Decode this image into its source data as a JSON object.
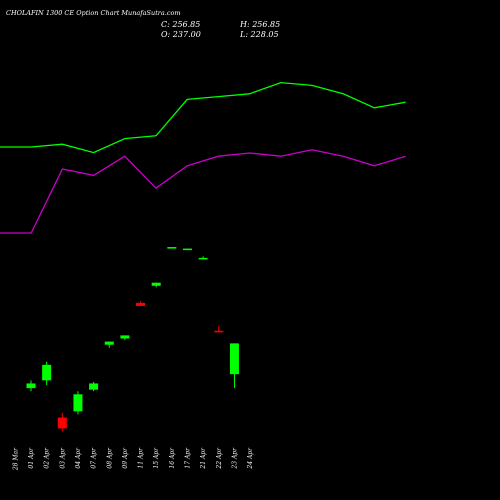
{
  "title": "CHOLAFIN 1300 CE Option Chart MunafaSutra.com",
  "ohlc": {
    "c_label": "C: 256.85",
    "h_label": "H: 256.85",
    "o_label": "O: 237.00",
    "l_label": "L: 228.05"
  },
  "colors": {
    "up": "#00ff00",
    "down": "#ff0000",
    "line_green": "#00ff00",
    "line_magenta": "#cc00cc",
    "axis": "#ffffff"
  },
  "chart_data": {
    "type": "candlestick",
    "categories": [
      "28 Mar",
      "01 Apr",
      "02 Apr",
      "03 Apr",
      "04 Apr",
      "07 Apr",
      "08 Apr",
      "09 Apr",
      "11 Apr",
      "15 Apr",
      "16 Apr",
      "17 Apr",
      "21 Apr",
      "22 Apr",
      "23 Apr",
      "24 Apr"
    ],
    "candles": [
      {
        "open": null,
        "high": null,
        "low": null,
        "close": null
      },
      {
        "open": 228,
        "high": 233,
        "low": 226,
        "close": 231
      },
      {
        "open": 233,
        "high": 245,
        "low": 230,
        "close": 243
      },
      {
        "open": 209,
        "high": 212,
        "low": 200,
        "close": 202
      },
      {
        "open": 213,
        "high": 226,
        "low": 211,
        "close": 224
      },
      {
        "open": 227,
        "high": 232,
        "low": 226,
        "close": 231
      },
      {
        "open": 256,
        "high": 258,
        "low": 254,
        "close": 258
      },
      {
        "open": 260,
        "high": 262,
        "low": 259,
        "close": 262
      },
      {
        "open": 283,
        "high": 284,
        "low": 281,
        "close": 281
      },
      {
        "open": 294,
        "high": 296,
        "low": 293,
        "close": 296
      },
      {
        "open": 318,
        "high": 319,
        "low": 318,
        "close": 319
      },
      {
        "open": 318,
        "high": 318,
        "low": 317,
        "close": 318
      },
      {
        "open": 312,
        "high": 313,
        "low": 311,
        "close": 312
      },
      {
        "open": 265,
        "high": 268,
        "low": 264,
        "close": 264
      },
      {
        "open": 237,
        "high": 256.85,
        "low": 228.05,
        "close": 256.85
      },
      {
        "open": null,
        "high": null,
        "low": null,
        "close": null
      }
    ],
    "series": [
      {
        "values": [
          240,
          240,
          241,
          238,
          243,
          244,
          257,
          258,
          259,
          263,
          262,
          259,
          254,
          256,
          null,
          null
        ]
      },
      {
        "values": [
          195,
          195,
          215,
          213,
          219,
          209,
          216,
          219,
          220,
          219,
          221,
          219,
          216,
          219,
          null,
          null
        ]
      }
    ]
  }
}
